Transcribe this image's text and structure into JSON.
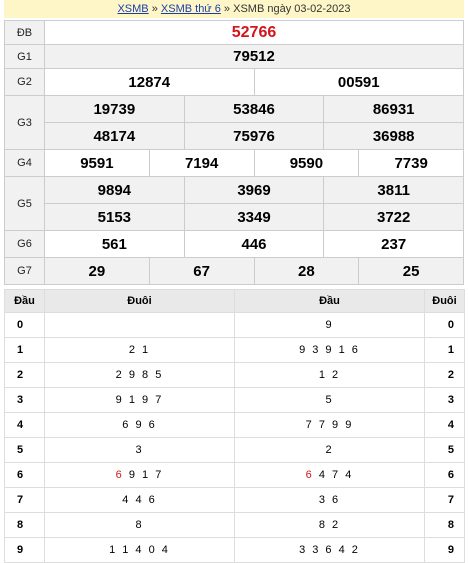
{
  "breadcrumb": {
    "link1": "XSMB",
    "sep1": "»",
    "link2": "XSMB thứ 6",
    "sep2": "»",
    "current": "XSMB ngày 03-02-2023"
  },
  "prizes": {
    "db": {
      "label": "ĐB",
      "values": [
        "52766"
      ]
    },
    "g1": {
      "label": "G1",
      "values": [
        "79512"
      ]
    },
    "g2": {
      "label": "G2",
      "values": [
        "12874",
        "00591"
      ]
    },
    "g3": {
      "label": "G3",
      "values": [
        "19739",
        "53846",
        "86931",
        "48174",
        "75976",
        "36988"
      ]
    },
    "g4": {
      "label": "G4",
      "values": [
        "9591",
        "7194",
        "9590",
        "7739"
      ]
    },
    "g5": {
      "label": "G5",
      "values": [
        "9894",
        "3969",
        "3811",
        "5153",
        "3349",
        "3722"
      ]
    },
    "g6": {
      "label": "G6",
      "values": [
        "561",
        "446",
        "237"
      ]
    },
    "g7": {
      "label": "G7",
      "values": [
        "29",
        "67",
        "28",
        "25"
      ]
    }
  },
  "loto": {
    "headers": {
      "dau": "Đầu",
      "duoi": "Đuôi",
      "dau2": "Đầu",
      "duoi2": "Đuôi"
    },
    "rows": [
      {
        "d": "0",
        "l": "",
        "lr": "",
        "r": "9",
        "rr": "",
        "d2": "0"
      },
      {
        "d": "1",
        "l": "2 1",
        "lr": "",
        "r": "9 3 9 1 6",
        "rr": "",
        "d2": "1"
      },
      {
        "d": "2",
        "l": "2 9 8 5",
        "lr": "",
        "r": "1 2",
        "rr": "",
        "d2": "2"
      },
      {
        "d": "3",
        "l": "9 1 9 7",
        "lr": "",
        "r": "5",
        "rr": "",
        "d2": "3"
      },
      {
        "d": "4",
        "l": "6 9 6",
        "lr": "",
        "r": "7 7 9 9",
        "rr": "",
        "d2": "4"
      },
      {
        "d": "5",
        "l": "3",
        "lr": "",
        "r": "2",
        "rr": "",
        "d2": "5"
      },
      {
        "d": "6",
        "l": "9 1 7",
        "lr": "6",
        "r": "4 7 4",
        "rr": "6",
        "d2": "6"
      },
      {
        "d": "7",
        "l": "4 4 6",
        "lr": "",
        "r": "3 6",
        "rr": "",
        "d2": "7"
      },
      {
        "d": "8",
        "l": "8",
        "lr": "",
        "r": "8 2",
        "rr": "",
        "d2": "8"
      },
      {
        "d": "9",
        "l": "1 1 4 0 4",
        "lr": "",
        "r": "3 3 6 4 2",
        "rr": "",
        "d2": "9"
      }
    ]
  }
}
